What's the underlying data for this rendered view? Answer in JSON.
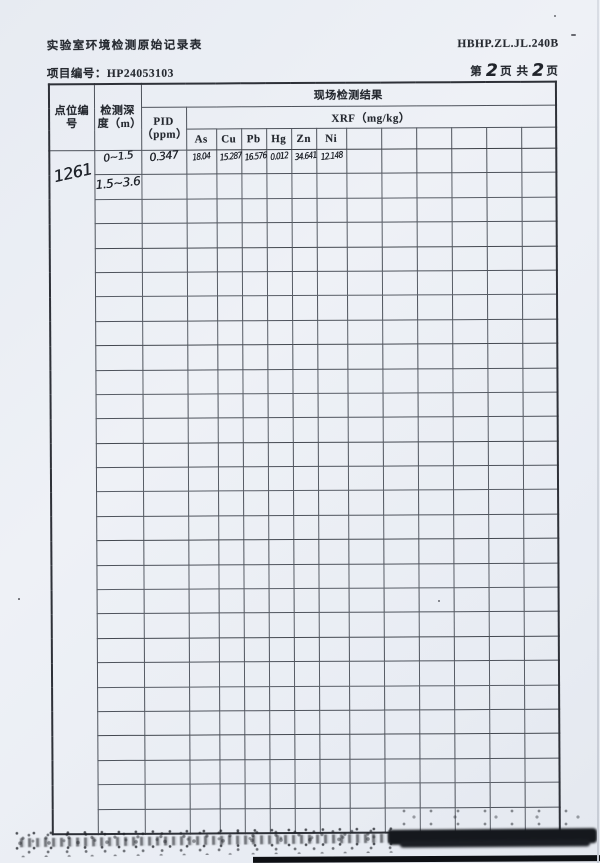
{
  "document": {
    "title": "实验室环境检测原始记录表",
    "code": "HBHP.ZL.JL.240B",
    "project_label": "项目编号：",
    "project_number": "HP24053103",
    "page_indicator": {
      "prefix": "第",
      "current_page": "2",
      "middle": "页 共",
      "total_pages": "2",
      "suffix": "页"
    }
  },
  "table": {
    "headers": {
      "point_id": "点位编号",
      "depth": "检测深度（m）",
      "result_group": "现场检测结果",
      "pid": "PID",
      "pid_unit": "（ppm）",
      "xrf_group": "XRF（mg/kg）",
      "elements": [
        "As",
        "Cu",
        "Pb",
        "Hg",
        "Zn",
        "Ni"
      ]
    },
    "entries": {
      "point_id": "1261",
      "rows": [
        {
          "depth": "0~1.5",
          "pid": "0.347",
          "as": "18.04",
          "cu": "15.287",
          "pb": "16.576",
          "hg": "0.012",
          "zn": "34.641",
          "ni": "12.148"
        },
        {
          "depth": "1.5~3.6"
        }
      ]
    }
  },
  "layout_hints": {
    "body_rows": 28,
    "extra_columns": 6
  }
}
